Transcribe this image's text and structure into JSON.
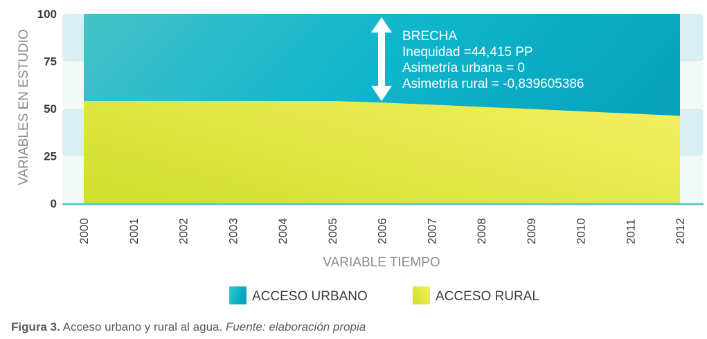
{
  "chart_data": {
    "type": "area",
    "xlabel": "VARIABLE TIEMPO",
    "ylabel": "VARIABLES EN ESTUDIO",
    "ylim": [
      0,
      100
    ],
    "y_ticks": [
      "0",
      "25",
      "50",
      "75",
      "100"
    ],
    "categories": [
      "2000",
      "2001",
      "2002",
      "2003",
      "2004",
      "2005",
      "2006",
      "2007",
      "2008",
      "2009",
      "2010",
      "2011",
      "2012"
    ],
    "series": [
      {
        "name": "ACCESO URBANO",
        "values": [
          100,
          100,
          100,
          100,
          100,
          100,
          100,
          100,
          100,
          100,
          100,
          100,
          100
        ]
      },
      {
        "name": "ACCESO RURAL",
        "values": [
          54,
          54,
          54,
          54,
          54,
          54,
          53.2,
          52.1,
          50.9,
          49.8,
          48.6,
          47.4,
          46.2
        ]
      }
    ],
    "legend_position": "bottom",
    "annotation": {
      "lines": [
        "BRECHA",
        "Inequidad =44,415 PP",
        "Asimetría urbana = 0",
        "Asimetría rural = -0,839605386"
      ]
    },
    "colors": {
      "urban": "#14b3c4",
      "rural": "#e2e448",
      "band_dark": "#d9eef1",
      "band_light": "#f3f9f6",
      "axis": "#5fc3d0",
      "text": "#8a8a8a"
    }
  },
  "caption": {
    "label": "Figura 3.",
    "text": " Acceso urbano y rural al agua. ",
    "source": "Fuente: elaboración propia"
  }
}
